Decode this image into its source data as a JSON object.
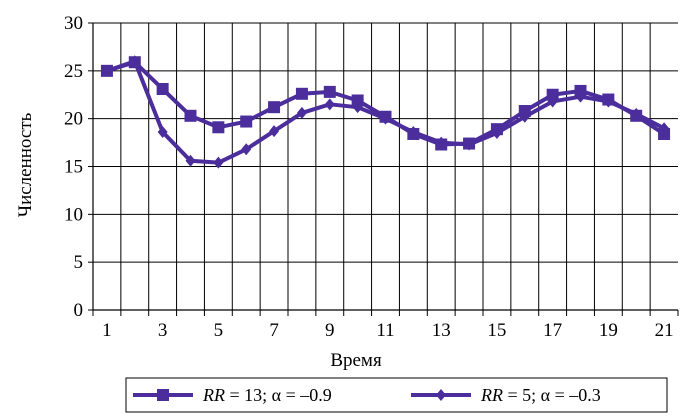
{
  "chart_data": {
    "type": "line",
    "title": "",
    "xlabel": "Время",
    "ylabel": "Численность",
    "xlim": [
      0.5,
      21.5
    ],
    "ylim": [
      0,
      30
    ],
    "x_ticks": [
      1,
      3,
      5,
      7,
      9,
      11,
      13,
      15,
      17,
      19,
      21
    ],
    "y_ticks": [
      0,
      5,
      10,
      15,
      20,
      25,
      30
    ],
    "grid": true,
    "legend_position": "bottom",
    "x": [
      1,
      2,
      3,
      4,
      5,
      6,
      7,
      8,
      9,
      10,
      11,
      12,
      13,
      14,
      15,
      16,
      17,
      18,
      19,
      20,
      21
    ],
    "series": [
      {
        "name": "RR = 13; α = –0.9",
        "legend_parts": [
          "RR",
          " = 13; ",
          "α",
          " = –0.9"
        ],
        "marker": "square",
        "color": "#4b2d9c",
        "values": [
          25.0,
          25.9,
          23.1,
          20.3,
          19.1,
          19.7,
          21.2,
          22.6,
          22.8,
          21.9,
          20.2,
          18.4,
          17.3,
          17.4,
          18.9,
          20.8,
          22.5,
          22.9,
          22.0,
          20.3,
          18.4
        ]
      },
      {
        "name": "RR = 5; α = –0.3",
        "legend_parts": [
          "RR",
          " = 5; ",
          "α",
          " = –0.3"
        ],
        "marker": "diamond",
        "color": "#4b2d9c",
        "values": [
          25.0,
          26.0,
          18.6,
          15.6,
          15.4,
          16.8,
          18.7,
          20.6,
          21.5,
          21.2,
          20.0,
          18.6,
          17.5,
          17.3,
          18.5,
          20.2,
          21.8,
          22.3,
          21.8,
          20.5,
          19.0
        ]
      }
    ]
  }
}
